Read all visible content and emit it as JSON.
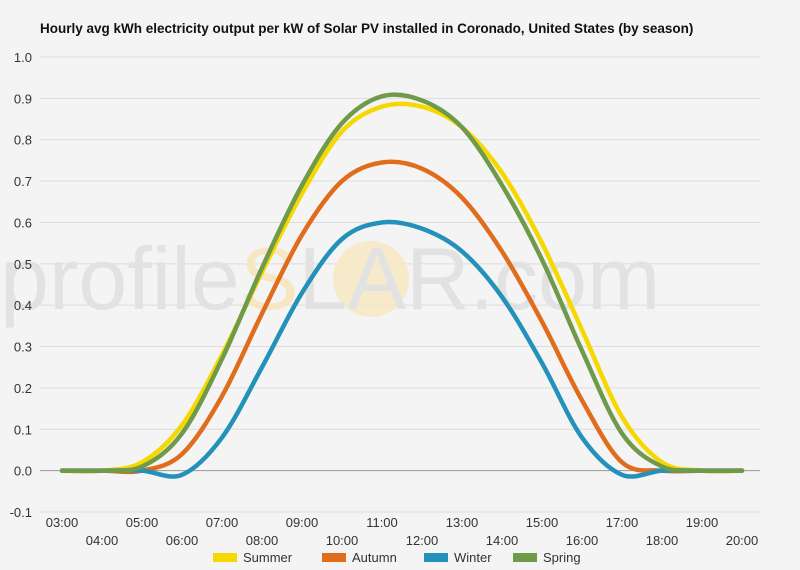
{
  "chart_data": {
    "type": "line",
    "title": "Hourly avg kWh electricity output per kW of Solar PV installed in Coronado, United States (by season)",
    "watermark": {
      "left": "profile",
      "sun_letter": "S",
      "right": "LAR.com"
    },
    "xlabel": "",
    "ylabel": "",
    "ylim": [
      -0.1,
      1.0
    ],
    "yticks": [
      "-0.1",
      "0.0",
      "0.1",
      "0.2",
      "0.3",
      "0.4",
      "0.5",
      "0.6",
      "0.7",
      "0.8",
      "0.9",
      "1.0"
    ],
    "x": [
      "03:00",
      "04:00",
      "05:00",
      "06:00",
      "07:00",
      "08:00",
      "09:00",
      "10:00",
      "11:00",
      "12:00",
      "13:00",
      "14:00",
      "15:00",
      "16:00",
      "17:00",
      "18:00",
      "19:00",
      "20:00"
    ],
    "grid": true,
    "legend_position": "bottom",
    "series": [
      {
        "name": "Summer",
        "color": "#f5d800",
        "values": [
          0.0,
          0.0,
          0.02,
          0.11,
          0.28,
          0.48,
          0.67,
          0.82,
          0.88,
          0.88,
          0.83,
          0.72,
          0.55,
          0.34,
          0.13,
          0.02,
          0.0,
          0.0
        ]
      },
      {
        "name": "Autumn",
        "color": "#e06c1d",
        "values": [
          0.0,
          0.0,
          0.0,
          0.04,
          0.18,
          0.38,
          0.57,
          0.7,
          0.745,
          0.73,
          0.66,
          0.53,
          0.36,
          0.17,
          0.02,
          0.0,
          0.0,
          0.0
        ]
      },
      {
        "name": "Winter",
        "color": "#2391b9",
        "values": [
          0.0,
          0.0,
          0.0,
          -0.01,
          0.08,
          0.25,
          0.43,
          0.56,
          0.6,
          0.585,
          0.53,
          0.42,
          0.26,
          0.08,
          -0.01,
          0.0,
          0.0,
          0.0
        ]
      },
      {
        "name": "Spring",
        "color": "#6f9a4a",
        "values": [
          0.0,
          0.0,
          0.01,
          0.09,
          0.27,
          0.49,
          0.69,
          0.84,
          0.905,
          0.895,
          0.83,
          0.69,
          0.51,
          0.29,
          0.09,
          0.01,
          0.0,
          0.0
        ]
      }
    ]
  }
}
